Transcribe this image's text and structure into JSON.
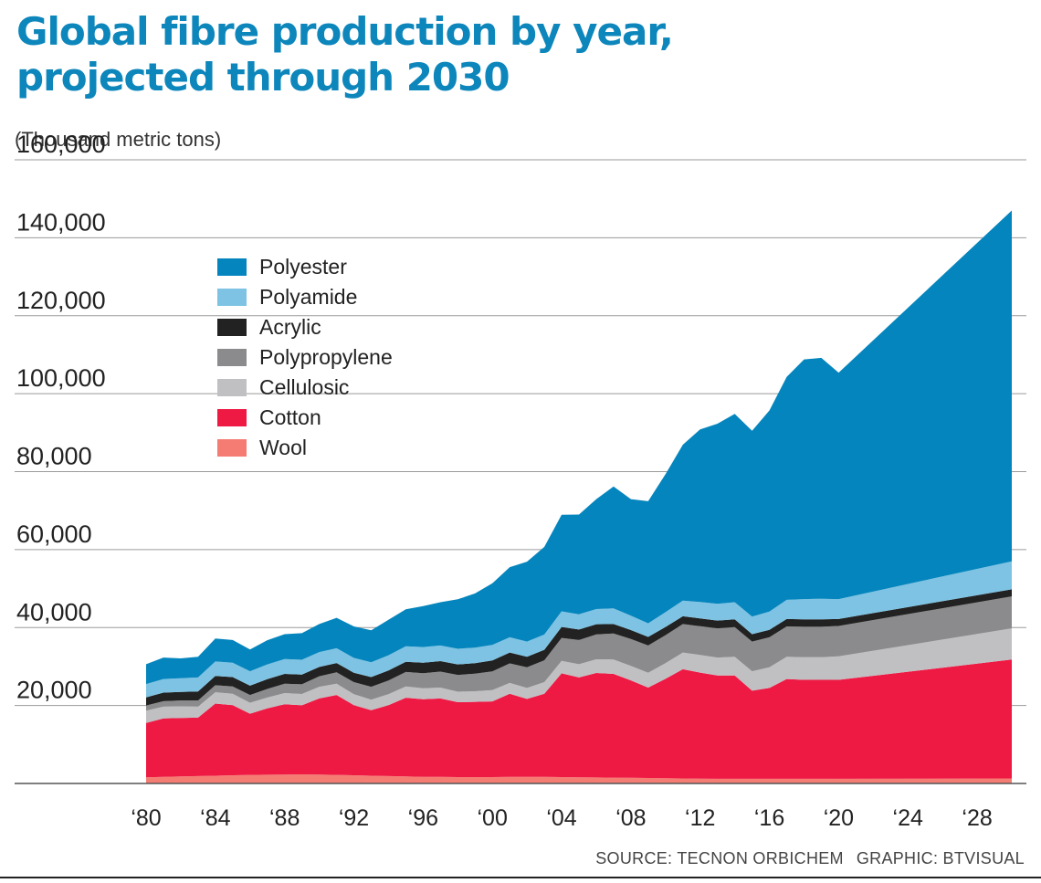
{
  "title_line1": "Global fibre production by year,",
  "title_line2": "projected through 2030",
  "unit_label": "(Thousand metric tons)",
  "source": "SOURCE: TECNON ORBICHEM",
  "graphic_credit": "GRAPHIC: BTVISUAL",
  "colors": {
    "Wool": "#f47c73",
    "Cotton": "#ee1a44",
    "Cellulosic": "#c0c0c2",
    "Polypropylene": "#8b8b8d",
    "Acrylic": "#222222",
    "Polyamide": "#7ec3e3",
    "Polyester": "#0585bd"
  },
  "chart_data": {
    "type": "area",
    "stacked": true,
    "title": "Global fibre production by year, projected through 2030",
    "ylabel": "(Thousand metric tons)",
    "ylim": [
      0,
      160000
    ],
    "yticks": [
      20000,
      40000,
      60000,
      80000,
      100000,
      120000,
      140000,
      160000
    ],
    "ytick_labels": [
      "20,000",
      "40,000",
      "60,000",
      "80,000",
      "100,000",
      "120,000",
      "140,000",
      "160,000"
    ],
    "xlim": [
      1980,
      2030
    ],
    "xticks": [
      1980,
      1984,
      1988,
      1992,
      1996,
      2000,
      2004,
      2008,
      2012,
      2016,
      2020,
      2024,
      2028
    ],
    "xtick_labels": [
      "‘80",
      "‘84",
      "‘88",
      "‘92",
      "‘96",
      "‘00",
      "‘04",
      "‘08",
      "‘12",
      "‘16",
      "‘20",
      "‘24",
      "‘28"
    ],
    "grid": true,
    "legend_position": "top-left",
    "x": [
      1980,
      1981,
      1982,
      1983,
      1984,
      1985,
      1986,
      1987,
      1988,
      1989,
      1990,
      1991,
      1992,
      1993,
      1994,
      1995,
      1996,
      1997,
      1998,
      1999,
      2000,
      2001,
      2002,
      2003,
      2004,
      2005,
      2006,
      2007,
      2008,
      2009,
      2010,
      2011,
      2012,
      2013,
      2014,
      2015,
      2016,
      2017,
      2018,
      2019,
      2020,
      2030
    ],
    "series": [
      {
        "name": "Wool",
        "values": [
          1600,
          1700,
          1800,
          1900,
          2000,
          2100,
          2200,
          2250,
          2300,
          2350,
          2300,
          2200,
          2100,
          2000,
          1900,
          1800,
          1700,
          1700,
          1650,
          1650,
          1650,
          1700,
          1700,
          1700,
          1650,
          1600,
          1550,
          1500,
          1450,
          1400,
          1350,
          1300,
          1250,
          1200,
          1200,
          1200,
          1200,
          1200,
          1200,
          1200,
          1200,
          1300
        ]
      },
      {
        "name": "Cotton",
        "values": [
          13900,
          15000,
          15000,
          15000,
          18500,
          18000,
          15700,
          17000,
          18000,
          17700,
          19500,
          20500,
          18000,
          16800,
          18200,
          20200,
          19900,
          20100,
          19200,
          19300,
          19400,
          21300,
          20000,
          21300,
          26600,
          25600,
          26800,
          26600,
          25000,
          23200,
          25500,
          28000,
          27200,
          26500,
          26500,
          22600,
          23300,
          25600,
          25400,
          25400,
          25400,
          30500
        ]
      },
      {
        "name": "Cellulosic",
        "values": [
          3200,
          3000,
          3000,
          2800,
          2900,
          2900,
          2800,
          2800,
          2900,
          2900,
          3000,
          2900,
          2800,
          2700,
          2800,
          2900,
          2800,
          2800,
          2700,
          2700,
          2900,
          2800,
          2800,
          3000,
          3200,
          3400,
          3500,
          3700,
          3700,
          3800,
          4000,
          4300,
          4500,
          4600,
          4800,
          5000,
          5300,
          5700,
          5800,
          5800,
          6000,
          8000
        ]
      },
      {
        "name": "Polypropylene",
        "values": [
          1300,
          1400,
          1500,
          1600,
          1800,
          1900,
          2000,
          2200,
          2400,
          2500,
          2700,
          2900,
          3100,
          3300,
          3500,
          3700,
          3900,
          4100,
          4300,
          4500,
          4800,
          5000,
          5300,
          5600,
          5900,
          6200,
          6400,
          6700,
          6900,
          7000,
          7200,
          7300,
          7400,
          7500,
          7600,
          7600,
          7700,
          7800,
          7800,
          7800,
          7800,
          8200
        ]
      },
      {
        "name": "Acrylic",
        "values": [
          2100,
          2200,
          2200,
          2300,
          2400,
          2400,
          2400,
          2500,
          2500,
          2500,
          2400,
          2400,
          2400,
          2500,
          2600,
          2600,
          2700,
          2700,
          2700,
          2700,
          2800,
          2800,
          2700,
          2700,
          2800,
          2700,
          2600,
          2400,
          2300,
          2200,
          2100,
          2000,
          2000,
          2000,
          2000,
          1900,
          1900,
          1900,
          1900,
          1900,
          1800,
          1800
        ]
      },
      {
        "name": "Polyamide",
        "values": [
          3400,
          3500,
          3500,
          3600,
          3700,
          3700,
          3700,
          3800,
          3800,
          3800,
          3800,
          3800,
          3800,
          3800,
          3900,
          4000,
          4000,
          4000,
          4000,
          4000,
          4000,
          3900,
          3900,
          3900,
          4000,
          3900,
          3900,
          4000,
          3700,
          3500,
          3800,
          4000,
          4200,
          4300,
          4400,
          4500,
          4700,
          4900,
          5200,
          5300,
          5100,
          7200
        ]
      },
      {
        "name": "Polyester",
        "values": [
          5100,
          5500,
          5100,
          5300,
          5900,
          5800,
          5600,
          6200,
          6400,
          6800,
          7200,
          7800,
          8100,
          8200,
          9100,
          9500,
          10500,
          11100,
          12700,
          13900,
          15800,
          18000,
          20500,
          22500,
          24800,
          25600,
          28200,
          31300,
          29900,
          31300,
          35400,
          40000,
          44300,
          46200,
          48300,
          47700,
          51600,
          57200,
          61500,
          61800,
          58100,
          90000
        ]
      }
    ]
  }
}
